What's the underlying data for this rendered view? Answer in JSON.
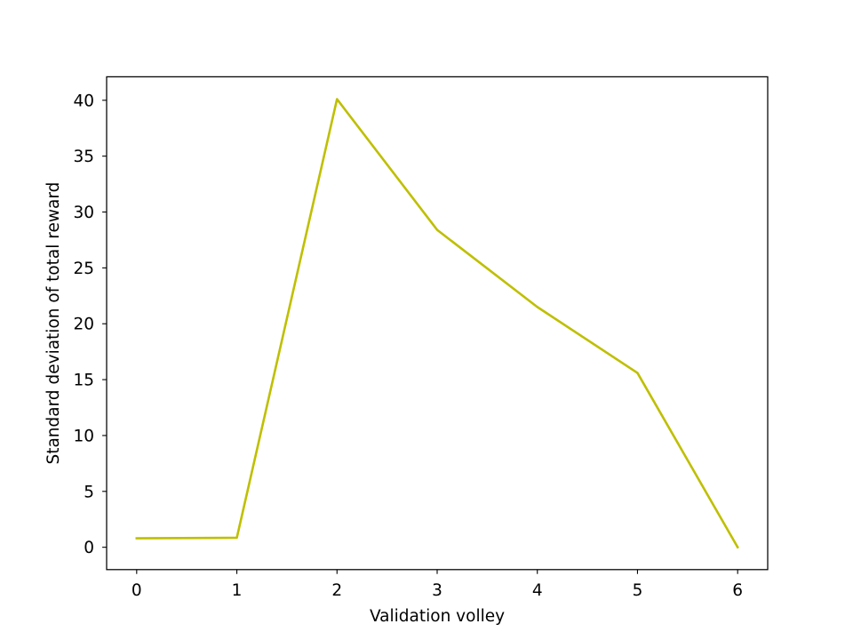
{
  "chart_data": {
    "type": "line",
    "title": "",
    "xlabel": "Validation volley",
    "ylabel": "Standard deviation of total reward",
    "x": [
      0,
      1,
      2,
      3,
      4,
      5,
      6
    ],
    "series": [
      {
        "values": [
          0.8,
          0.85,
          40.1,
          28.4,
          21.5,
          15.6,
          0.0
        ],
        "color": "#bfbf00"
      }
    ],
    "xticks": [
      0,
      1,
      2,
      3,
      4,
      5,
      6
    ],
    "xtick_labels": [
      "0",
      "1",
      "2",
      "3",
      "4",
      "5",
      "6"
    ],
    "yticks": [
      0,
      5,
      10,
      15,
      20,
      25,
      30,
      35,
      40
    ],
    "ytick_labels": [
      "0",
      "5",
      "10",
      "15",
      "20",
      "25",
      "30",
      "35",
      "40"
    ],
    "xlim": [
      -0.3,
      6.3
    ],
    "ylim": [
      -2.0,
      42.1
    ],
    "grid": false,
    "legend": "none"
  }
}
